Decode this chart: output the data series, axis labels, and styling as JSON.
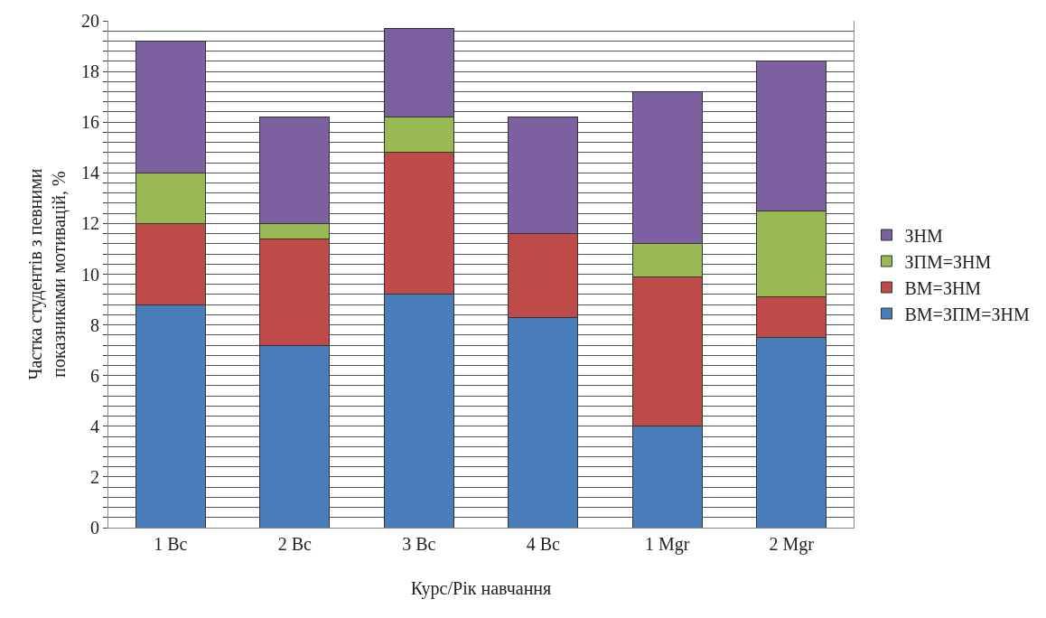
{
  "chart_data": {
    "type": "bar",
    "stacked": true,
    "xlabel": "Курс/Рік навчання",
    "ylabel": "Частка студентів з певними показниками мотивацій, %",
    "categories": [
      "1 Bc",
      "2 Bc",
      "3 Bc",
      "4 Bc",
      "1 Mgr",
      "2 Mgr"
    ],
    "series": [
      {
        "name": "ВМ=ЗПМ=ЗНМ",
        "color": "#4a7ebb",
        "values": [
          8.8,
          7.2,
          9.2,
          8.3,
          4.0,
          7.5
        ]
      },
      {
        "name": "ВМ=ЗНМ",
        "color": "#be4b48",
        "values": [
          3.2,
          4.2,
          5.6,
          3.3,
          5.9,
          1.6
        ]
      },
      {
        "name": "ЗПМ=ЗНМ",
        "color": "#98b954",
        "values": [
          2.0,
          0.6,
          1.4,
          0,
          1.3,
          3.4
        ]
      },
      {
        "name": "ЗНМ",
        "color": "#7d60a0",
        "values": [
          5.2,
          4.2,
          3.5,
          4.6,
          6.0,
          5.9
        ]
      }
    ],
    "ylim": [
      0,
      20
    ],
    "yticks": [
      0,
      {
        "value": 0.4,
        "label": null
      },
      {
        "value": 0.8,
        "label": null
      },
      {
        "value": 1.2,
        "label": null
      },
      {
        "value": 1.6,
        "label": null
      },
      2,
      {
        "value": 2.4,
        "label": null
      },
      {
        "value": 2.8,
        "label": null
      },
      {
        "value": 3.2,
        "label": null
      },
      {
        "value": 3.6,
        "label": null
      },
      4,
      {
        "value": 4.4,
        "label": null
      },
      {
        "value": 4.8,
        "label": null
      },
      {
        "value": 5.2,
        "label": null
      },
      {
        "value": 5.6,
        "label": null
      },
      6,
      {
        "value": 6.4,
        "label": null
      },
      {
        "value": 6.8,
        "label": null
      },
      {
        "value": 7.2,
        "label": null
      },
      {
        "value": 7.6,
        "label": null
      },
      8,
      {
        "value": 8.4,
        "label": null
      },
      {
        "value": 8.8,
        "label": null
      },
      {
        "value": 9.2,
        "label": null
      },
      {
        "value": 9.6,
        "label": null
      },
      10,
      {
        "value": 10.4,
        "label": null
      },
      {
        "value": 10.8,
        "label": null
      },
      {
        "value": 11.2,
        "label": null
      },
      {
        "value": 11.6,
        "label": null
      },
      12,
      {
        "value": 12.4,
        "label": null
      },
      {
        "value": 12.8,
        "label": null
      },
      {
        "value": 13.2,
        "label": null
      },
      {
        "value": 13.6,
        "label": null
      },
      14,
      {
        "value": 14.4,
        "label": null
      },
      {
        "value": 14.8,
        "label": null
      },
      {
        "value": 15.2,
        "label": null
      },
      {
        "value": 15.6,
        "label": null
      },
      16,
      {
        "value": 16.4,
        "label": null
      },
      {
        "value": 16.8,
        "label": null
      },
      {
        "value": 17.2,
        "label": null
      },
      {
        "value": 17.6,
        "label": null
      },
      18,
      {
        "value": 18.4,
        "label": null
      },
      {
        "value": 18.8,
        "label": null
      },
      {
        "value": 19.2,
        "label": null
      },
      {
        "value": 19.6,
        "label": null
      },
      20
    ],
    "grid": "y",
    "legend": "right"
  }
}
